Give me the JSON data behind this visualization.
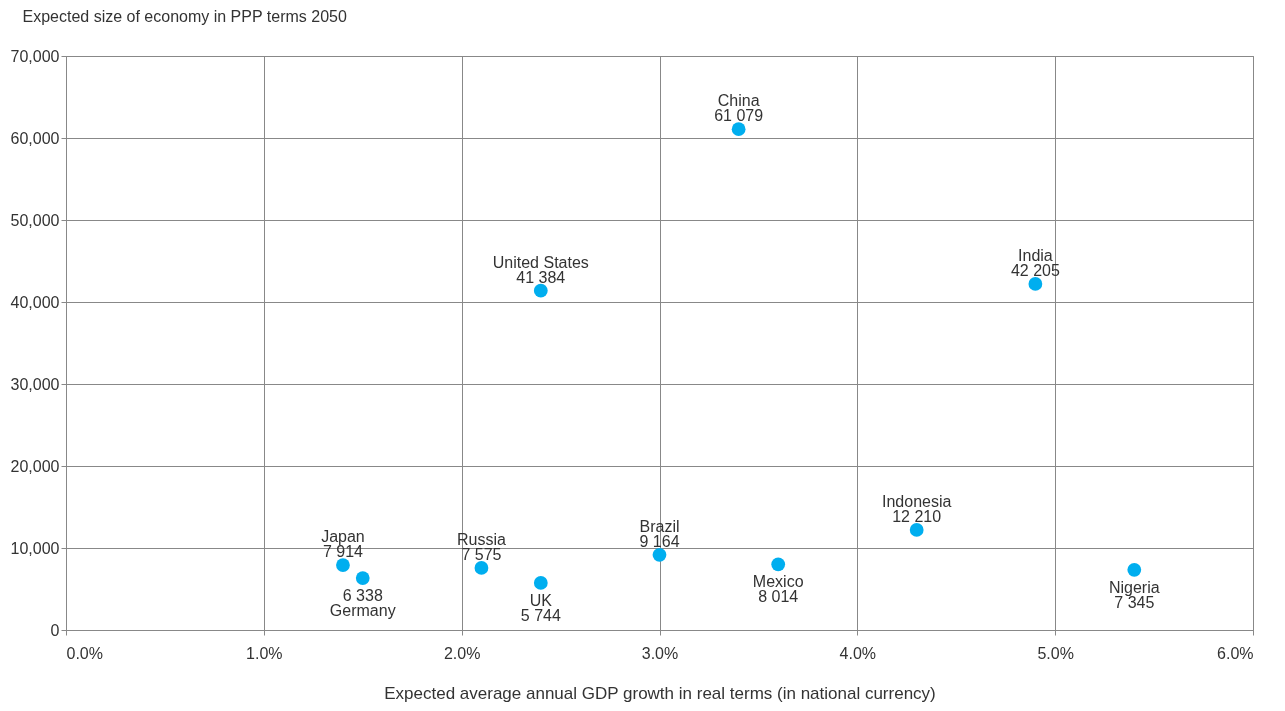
{
  "chart_data": {
    "type": "scatter",
    "ylabel": "Expected size of economy in PPP terms 2050",
    "xlabel": "Expected average annual GDP growth in real terms (in national currency)",
    "xlim": [
      0,
      6
    ],
    "xticks": [
      {
        "value": 0,
        "label": "0.0%"
      },
      {
        "value": 1,
        "label": "1.0%"
      },
      {
        "value": 2,
        "label": "2.0%"
      },
      {
        "value": 3,
        "label": "3.0%"
      },
      {
        "value": 4,
        "label": "4.0%"
      },
      {
        "value": 5,
        "label": "5.0%"
      },
      {
        "value": 6,
        "label": "6.0%"
      }
    ],
    "ylim": [
      0,
      70000
    ],
    "yticks": [
      {
        "value": 0,
        "label": "0"
      },
      {
        "value": 10000,
        "label": "10,000"
      },
      {
        "value": 20000,
        "label": "20,000"
      },
      {
        "value": 30000,
        "label": "30,000"
      },
      {
        "value": 40000,
        "label": "40,000"
      },
      {
        "value": 50000,
        "label": "50,000"
      },
      {
        "value": 60000,
        "label": "60,000"
      },
      {
        "value": 70000,
        "label": "70,000"
      }
    ],
    "grid": true,
    "marker": "circle",
    "series": [
      {
        "name": "Japan",
        "color": "#00aeef",
        "x": [
          1.4
        ],
        "values": [
          7914
        ],
        "value_labels": [
          "7 914"
        ]
      },
      {
        "name": "Germany",
        "color": "#00aeef",
        "x": [
          1.5
        ],
        "values": [
          6338
        ],
        "value_labels": [
          "6 338"
        ]
      },
      {
        "name": "Russia",
        "color": "#00aeef",
        "x": [
          2.1
        ],
        "values": [
          7575
        ],
        "value_labels": [
          "7 575"
        ]
      },
      {
        "name": "UK",
        "color": "#00aeef",
        "x": [
          2.4
        ],
        "values": [
          5744
        ],
        "value_labels": [
          "5 744"
        ]
      },
      {
        "name": "United States",
        "color": "#00aeef",
        "x": [
          2.4
        ],
        "values": [
          41384
        ],
        "value_labels": [
          "41 384"
        ]
      },
      {
        "name": "Brazil",
        "color": "#00aeef",
        "x": [
          3.0
        ],
        "values": [
          9164
        ],
        "value_labels": [
          "9 164"
        ]
      },
      {
        "name": "China",
        "color": "#00aeef",
        "x": [
          3.4
        ],
        "values": [
          61079
        ],
        "value_labels": [
          "61 079"
        ]
      },
      {
        "name": "Mexico",
        "color": "#00aeef",
        "x": [
          3.6
        ],
        "values": [
          8014
        ],
        "value_labels": [
          "8 014"
        ]
      },
      {
        "name": "Indonesia",
        "color": "#00aeef",
        "x": [
          4.3
        ],
        "values": [
          12210
        ],
        "value_labels": [
          "12 210"
        ]
      },
      {
        "name": "India",
        "color": "#00aeef",
        "x": [
          4.9
        ],
        "values": [
          42205
        ],
        "value_labels": [
          "42 205"
        ]
      },
      {
        "name": "Nigeria",
        "color": "#00aeef",
        "x": [
          5.4
        ],
        "values": [
          7345
        ],
        "value_labels": [
          "7 345"
        ]
      }
    ]
  }
}
